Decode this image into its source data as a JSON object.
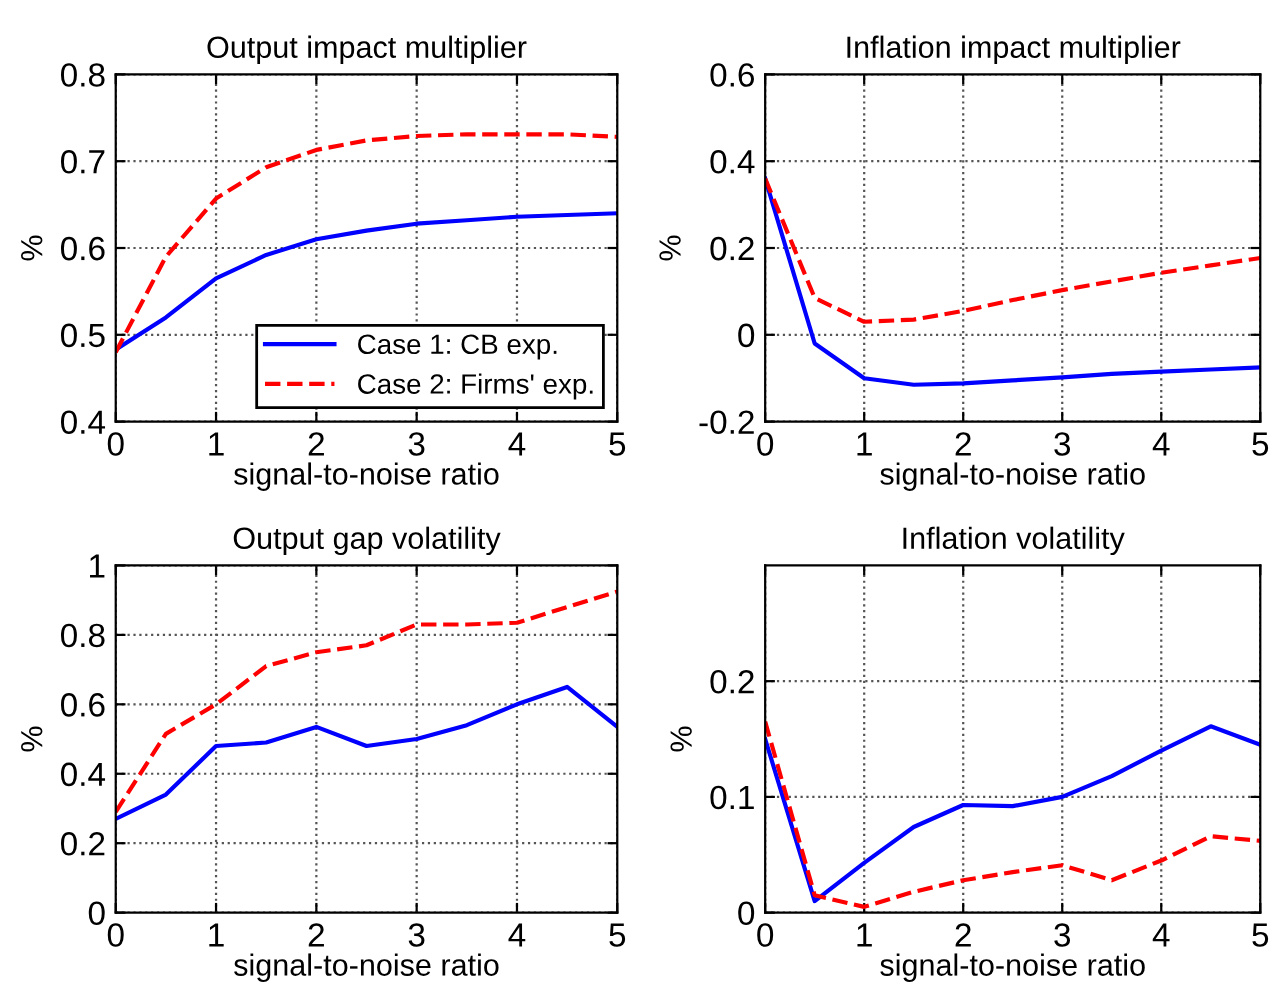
{
  "chart_data": [
    {
      "type": "line",
      "title": "Output impact multiplier",
      "xlabel": "signal-to-noise ratio",
      "ylabel": "%",
      "x": [
        0,
        0.5,
        1,
        1.5,
        2,
        2.5,
        3,
        3.5,
        4,
        4.5,
        5
      ],
      "xlim": [
        0,
        5
      ],
      "xticks": [
        0,
        1,
        2,
        3,
        4,
        5
      ],
      "ylim": [
        0.4,
        0.8
      ],
      "yticks": [
        0.4,
        0.5,
        0.6,
        0.7,
        0.8
      ],
      "grid": true,
      "legend": "bottom right",
      "series": [
        {
          "name": "Case 1: CB exp.",
          "color": "#0000ff",
          "line_style": "solid",
          "values": [
            0.483,
            0.52,
            0.565,
            0.592,
            0.61,
            0.62,
            0.628,
            0.632,
            0.636,
            0.638,
            0.64
          ]
        },
        {
          "name": "Case 2: Firms' exp.",
          "color": "#ff0000",
          "line_style": "dashed",
          "values": [
            0.48,
            0.59,
            0.657,
            0.693,
            0.713,
            0.724,
            0.729,
            0.731,
            0.731,
            0.731,
            0.728
          ]
        }
      ]
    },
    {
      "type": "line",
      "title": "Inflation impact multiplier",
      "xlabel": "signal-to-noise ratio",
      "ylabel": "%",
      "x": [
        0,
        0.5,
        1,
        1.5,
        2,
        2.5,
        3,
        3.5,
        4,
        4.5,
        5
      ],
      "xlim": [
        0,
        5
      ],
      "xticks": [
        0,
        1,
        2,
        3,
        4,
        5
      ],
      "ylim": [
        -0.2,
        0.6
      ],
      "yticks": [
        -0.2,
        0,
        0.2,
        0.4,
        0.6
      ],
      "grid": true,
      "series": [
        {
          "color": "#0000ff",
          "line_style": "solid",
          "values": [
            0.36,
            -0.02,
            -0.1,
            -0.115,
            -0.112,
            -0.105,
            -0.098,
            -0.09,
            -0.085,
            -0.08,
            -0.075
          ]
        },
        {
          "color": "#ff0000",
          "line_style": "dashed",
          "values": [
            0.36,
            0.085,
            0.03,
            0.035,
            0.055,
            0.08,
            0.103,
            0.123,
            0.143,
            0.16,
            0.177
          ]
        }
      ]
    },
    {
      "type": "line",
      "title": "Output gap volatility",
      "xlabel": "signal-to-noise ratio",
      "ylabel": "%",
      "x": [
        0,
        0.5,
        1,
        1.5,
        2,
        2.5,
        3,
        3.5,
        4,
        4.5,
        5
      ],
      "xlim": [
        0,
        5
      ],
      "xticks": [
        0,
        1,
        2,
        3,
        4,
        5
      ],
      "ylim": [
        0,
        1
      ],
      "yticks": [
        0,
        0.2,
        0.4,
        0.6,
        0.8,
        1
      ],
      "grid": true,
      "series": [
        {
          "color": "#0000ff",
          "line_style": "solid",
          "values": [
            0.27,
            0.34,
            0.48,
            0.49,
            0.535,
            0.48,
            0.5,
            0.54,
            0.6,
            0.65,
            0.535
          ]
        },
        {
          "color": "#ff0000",
          "line_style": "dashed",
          "values": [
            0.29,
            0.515,
            0.6,
            0.71,
            0.75,
            0.77,
            0.83,
            0.83,
            0.835,
            0.88,
            0.925
          ]
        }
      ]
    },
    {
      "type": "line",
      "title": "Inflation volatility",
      "xlabel": "signal-to-noise ratio",
      "ylabel": "%",
      "x": [
        0,
        0.5,
        1,
        1.5,
        2,
        2.5,
        3,
        3.5,
        4,
        4.5,
        5
      ],
      "xlim": [
        0,
        5
      ],
      "xticks": [
        0,
        1,
        2,
        3,
        4,
        5
      ],
      "ylim": [
        0,
        0.3
      ],
      "yticks": [
        0,
        0.1,
        0.2
      ],
      "grid": true,
      "series": [
        {
          "color": "#0000ff",
          "line_style": "solid",
          "values": [
            0.15,
            0.01,
            0.043,
            0.074,
            0.093,
            0.092,
            0.1,
            0.118,
            0.14,
            0.161,
            0.145
          ]
        },
        {
          "color": "#ff0000",
          "line_style": "dashed",
          "values": [
            0.165,
            0.015,
            0.005,
            0.018,
            0.028,
            0.035,
            0.041,
            0.028,
            0.045,
            0.066,
            0.062
          ]
        }
      ]
    }
  ]
}
